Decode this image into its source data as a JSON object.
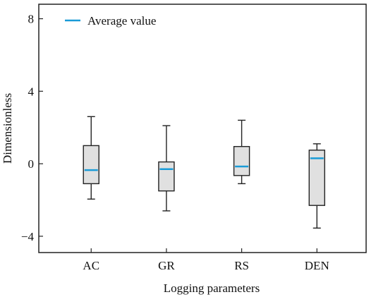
{
  "chart_data": {
    "type": "box",
    "xlabel": "Logging parameters",
    "ylabel": "Dimensionless",
    "ylim": [
      -4.9,
      8.8
    ],
    "yticks": [
      -4,
      0,
      4,
      8
    ],
    "ytick_labels": [
      "−4",
      "0",
      "4",
      "8"
    ],
    "legend": {
      "label": "Average value",
      "placement": "top-left"
    },
    "box_fill": "#e0e0e0",
    "mean_color": "#1a9bd7",
    "categories": [
      "AC",
      "GR",
      "RS",
      "DEN"
    ],
    "boxes": [
      {
        "category": "AC",
        "whisker_low": -1.95,
        "q1": -1.1,
        "q3": 1.0,
        "whisker_high": 2.6,
        "mean": -0.35
      },
      {
        "category": "GR",
        "whisker_low": -2.6,
        "q1": -1.5,
        "q3": 0.1,
        "whisker_high": 2.1,
        "mean": -0.3
      },
      {
        "category": "RS",
        "whisker_low": -1.1,
        "q1": -0.65,
        "q3": 0.95,
        "whisker_high": 2.4,
        "mean": -0.15
      },
      {
        "category": "DEN",
        "whisker_low": -3.55,
        "q1": -2.3,
        "q3": 0.75,
        "whisker_high": 1.1,
        "mean": 0.3
      }
    ]
  }
}
